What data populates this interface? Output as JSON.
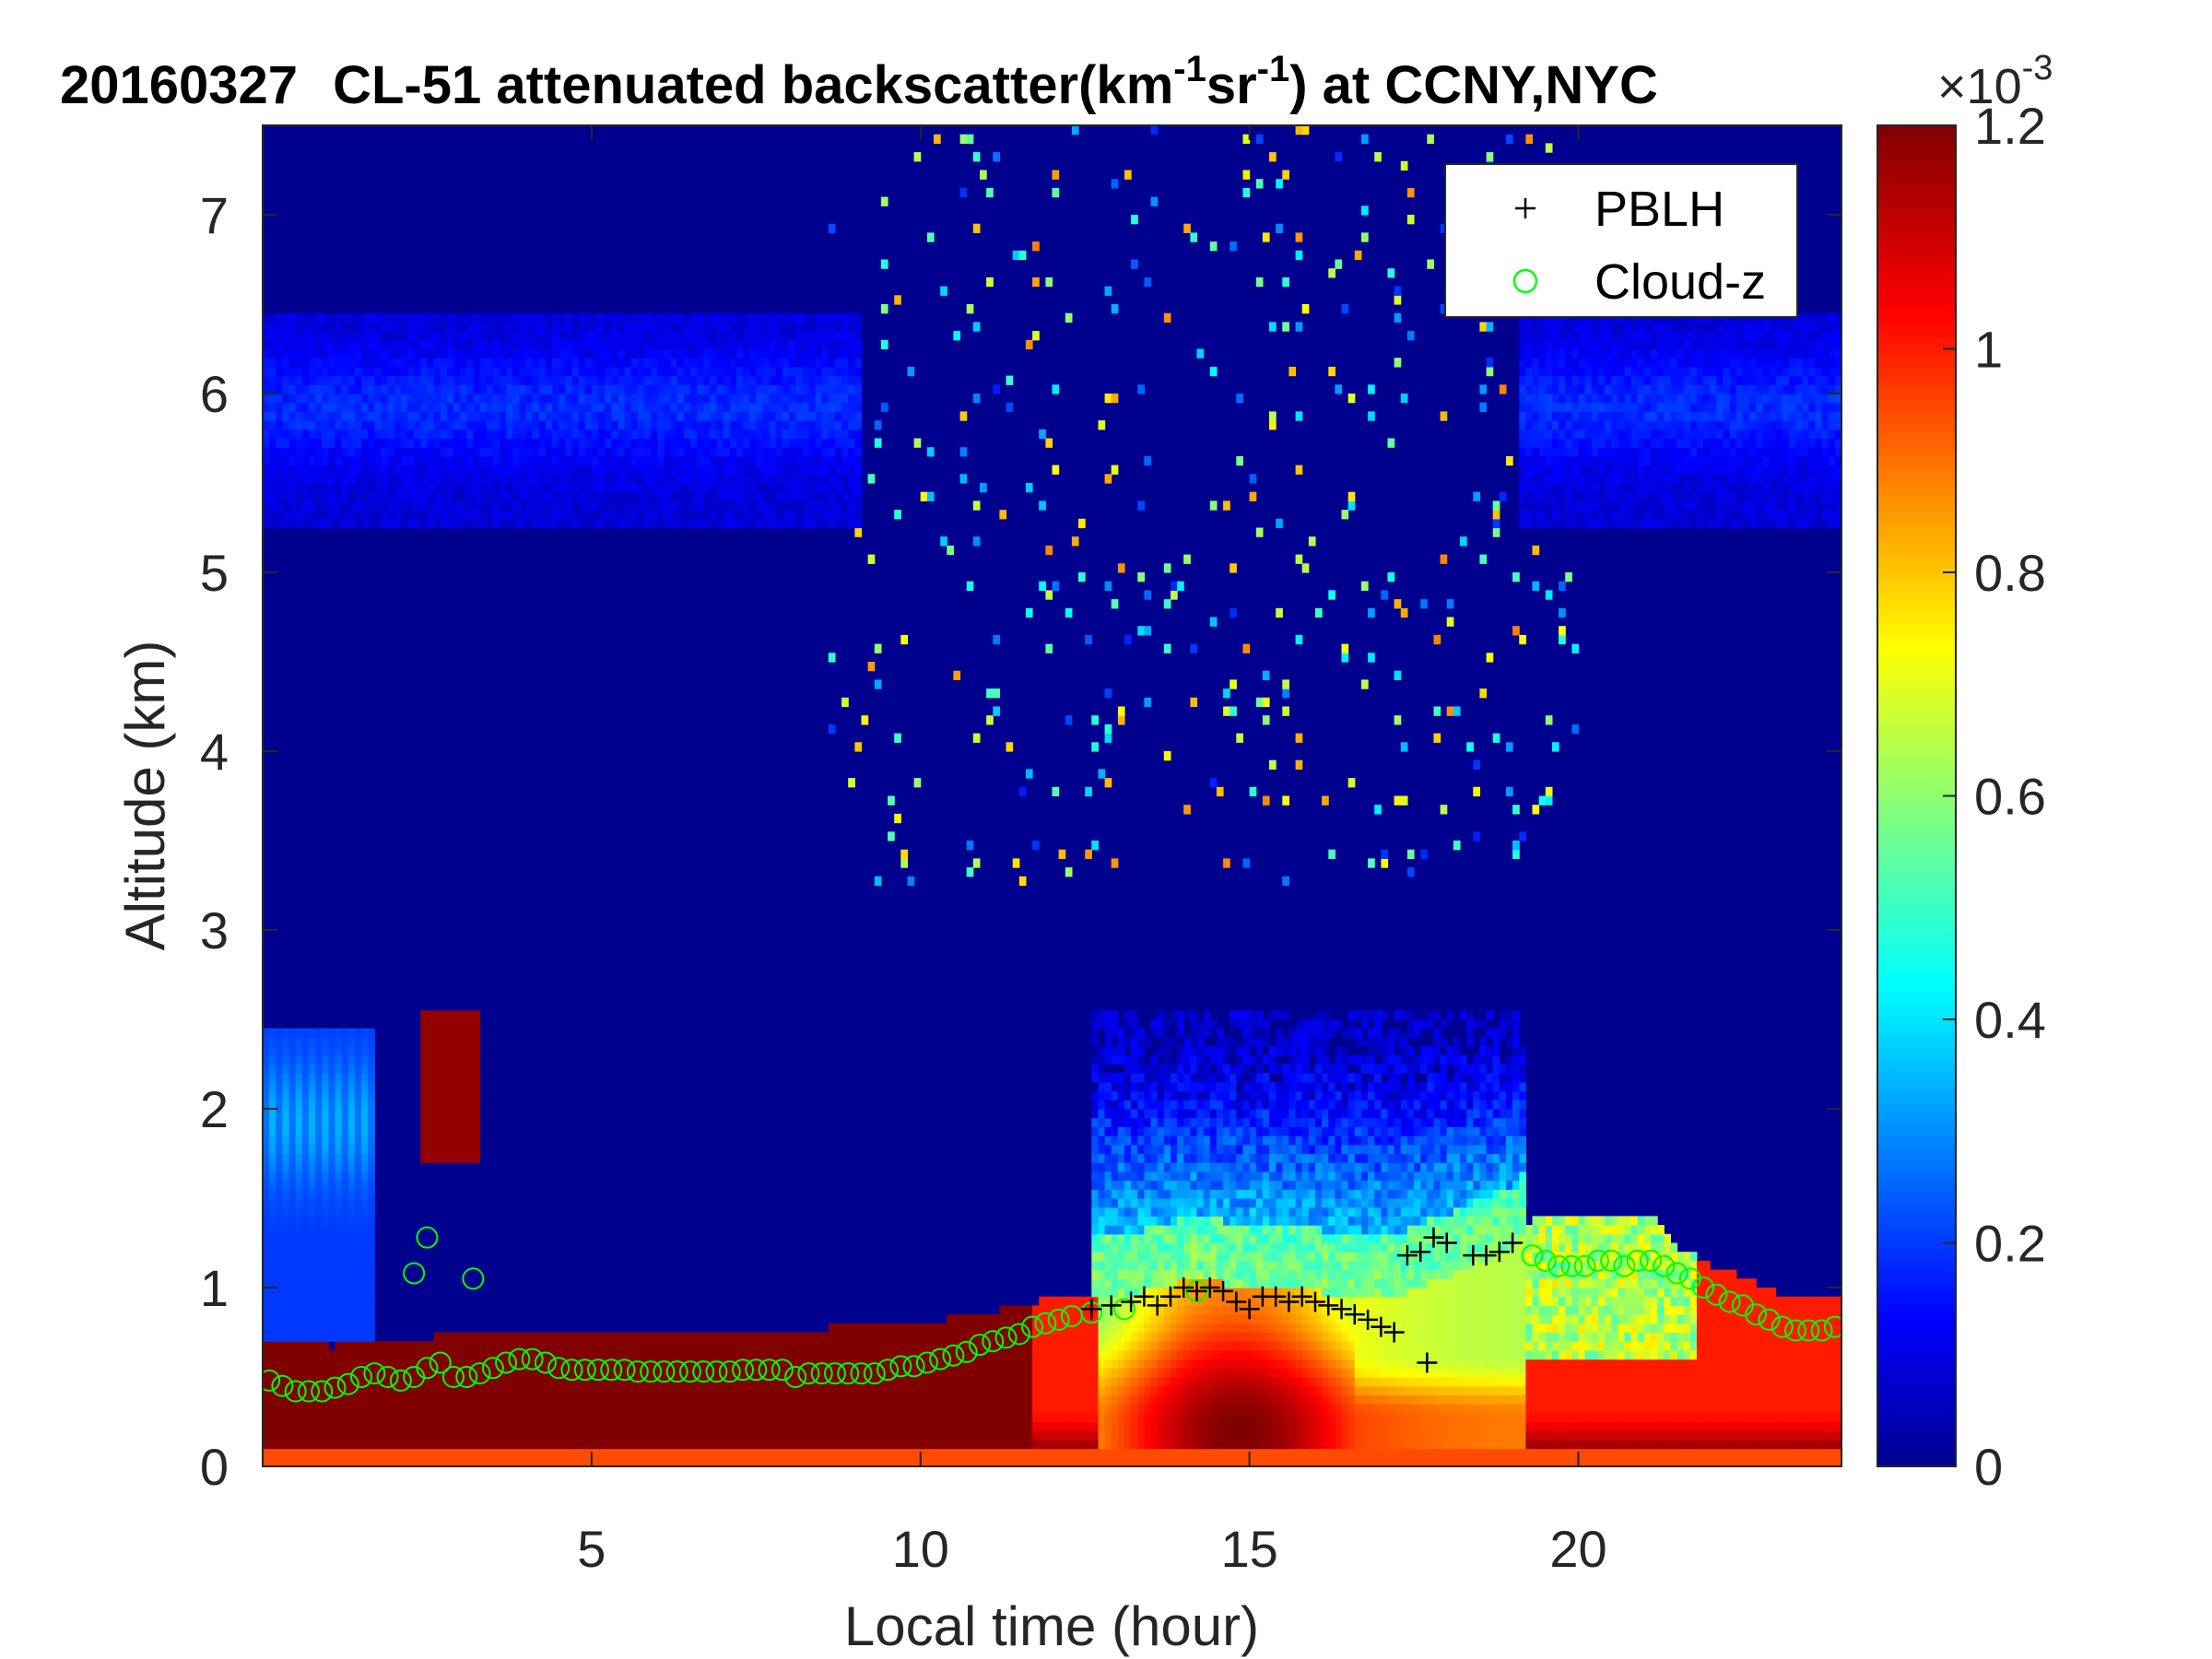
{
  "chart_data": {
    "type": "heatmap",
    "title": {
      "date": "20160327",
      "main": "CL-51 attenuated backscatter(km",
      "sup1": "-1",
      "mid": "sr",
      "sup2": "-1",
      "end": ") at CCNY,NYC"
    },
    "xlabel": "Local time (hour)",
    "ylabel": "Altitude (km)",
    "xlim": [
      0,
      24
    ],
    "ylim": [
      0,
      7.5
    ],
    "xticks": [
      5,
      10,
      15,
      20
    ],
    "yticks": [
      0,
      1,
      2,
      3,
      4,
      5,
      6,
      7
    ],
    "colorbar": {
      "range": [
        0,
        0.0012
      ],
      "multiplier": "×10",
      "multiplier_exp": "-3",
      "ticks": [
        0,
        0.2,
        0.4,
        0.6,
        0.8,
        1,
        1.2
      ],
      "colormap": "jet"
    },
    "legend": {
      "placement": "top-right",
      "entries": [
        {
          "label": "PBLH",
          "marker": "+",
          "color": "#000000"
        },
        {
          "label": "Cloud-z",
          "marker": "o",
          "color": "#00ff00"
        }
      ]
    },
    "series": [
      {
        "name": "PBLH",
        "marker": "+",
        "x": [
          12.6,
          12.9,
          13.2,
          13.4,
          13.6,
          13.8,
          14.0,
          14.2,
          14.4,
          14.6,
          14.8,
          15.0,
          15.2,
          15.4,
          15.6,
          15.8,
          16.0,
          16.2,
          16.4,
          16.6,
          16.8,
          17.0,
          17.2,
          17.4,
          17.6,
          17.7,
          17.8,
          18.0,
          18.4,
          18.6,
          18.8,
          19.0
        ],
        "y": [
          0.88,
          0.9,
          0.92,
          0.95,
          0.9,
          0.95,
          1.0,
          0.98,
          1.0,
          0.98,
          0.92,
          0.88,
          0.95,
          0.95,
          0.92,
          0.95,
          0.92,
          0.9,
          0.88,
          0.85,
          0.82,
          0.78,
          0.75,
          1.18,
          1.2,
          0.58,
          1.28,
          1.25,
          1.18,
          1.18,
          1.2,
          1.25
        ]
      },
      {
        "name": "Cloud-z",
        "marker": "o",
        "x": [
          0.1,
          0.3,
          0.5,
          0.7,
          0.9,
          1.1,
          1.3,
          1.5,
          1.7,
          1.9,
          2.1,
          2.3,
          2.5,
          2.7,
          2.9,
          3.1,
          3.3,
          3.5,
          3.7,
          3.9,
          4.1,
          4.3,
          4.5,
          4.7,
          4.9,
          5.1,
          5.3,
          5.5,
          5.7,
          5.9,
          6.1,
          6.3,
          6.5,
          6.7,
          6.9,
          7.1,
          7.3,
          7.5,
          7.7,
          7.9,
          8.1,
          8.3,
          8.5,
          8.7,
          8.9,
          9.1,
          9.3,
          9.5,
          9.7,
          9.9,
          10.1,
          10.3,
          10.5,
          10.7,
          10.9,
          11.1,
          11.3,
          11.5,
          11.7,
          11.9,
          12.1,
          12.3,
          12.6,
          13.1,
          14.2,
          19.3,
          19.5,
          19.7,
          19.9,
          20.1,
          20.3,
          20.5,
          20.7,
          20.9,
          21.1,
          21.3,
          21.5,
          21.7,
          21.9,
          22.1,
          22.3,
          22.5,
          22.7,
          22.9,
          23.1,
          23.3,
          23.5,
          23.7,
          23.9,
          2.3,
          2.5,
          3.2
        ],
        "y": [
          0.48,
          0.45,
          0.42,
          0.42,
          0.42,
          0.44,
          0.46,
          0.5,
          0.52,
          0.5,
          0.48,
          0.5,
          0.55,
          0.58,
          0.5,
          0.5,
          0.52,
          0.55,
          0.58,
          0.6,
          0.6,
          0.58,
          0.55,
          0.54,
          0.54,
          0.54,
          0.54,
          0.54,
          0.53,
          0.53,
          0.53,
          0.53,
          0.53,
          0.53,
          0.53,
          0.53,
          0.54,
          0.54,
          0.54,
          0.54,
          0.5,
          0.52,
          0.52,
          0.52,
          0.52,
          0.52,
          0.52,
          0.54,
          0.56,
          0.56,
          0.58,
          0.6,
          0.62,
          0.64,
          0.68,
          0.7,
          0.72,
          0.74,
          0.78,
          0.8,
          0.82,
          0.84,
          0.86,
          0.88,
          0.98,
          1.18,
          1.15,
          1.12,
          1.12,
          1.12,
          1.15,
          1.15,
          1.12,
          1.15,
          1.15,
          1.12,
          1.08,
          1.05,
          1.0,
          0.96,
          0.92,
          0.9,
          0.85,
          0.82,
          0.78,
          0.76,
          0.76,
          0.76,
          0.78,
          1.08,
          1.28,
          1.05
        ]
      }
    ]
  }
}
